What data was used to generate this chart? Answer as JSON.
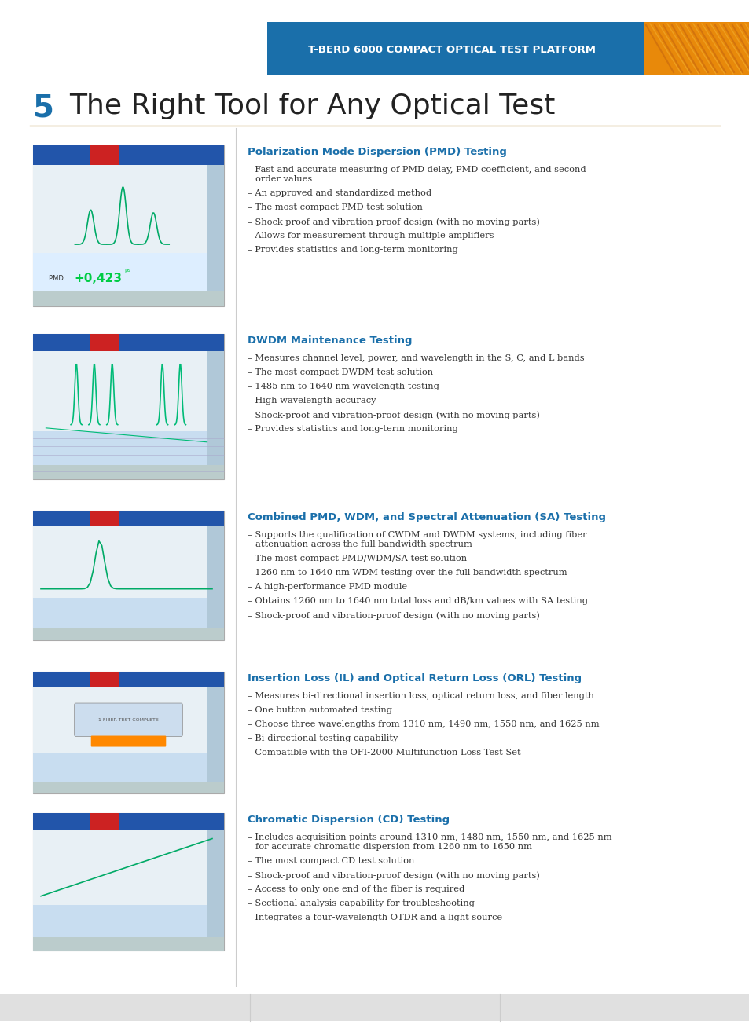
{
  "page_bg": "#ffffff",
  "header_bg": "#1a6faa",
  "header_text": "T-BERD 6000 COMPACT OPTICAL TEST PLATFORM",
  "header_text_color": "#ffffff",
  "page_number": "5",
  "page_number_color": "#1a6faa",
  "title": "The Right Tool for Any Optical Test",
  "title_color": "#222222",
  "divider_color": "#c8a96e",
  "sections": [
    {
      "heading": "Polarization Mode Dispersion (PMD) Testing",
      "heading_color": "#1a6faa",
      "bullets": [
        "– Fast and accurate measuring of PMD delay, PMD coefficient, and second\n   order values",
        "– An approved and standardized method",
        "– The most compact PMD test solution",
        "– Shock-proof and vibration-proof design (with no moving parts)",
        "– Allows for measurement through multiple amplifiers",
        "– Provides statistics and long-term monitoring"
      ]
    },
    {
      "heading": "DWDM Maintenance Testing",
      "heading_color": "#1a6faa",
      "bullets": [
        "– Measures channel level, power, and wavelength in the S, C, and L bands",
        "– The most compact DWDM test solution",
        "– 1485 nm to 1640 nm wavelength testing",
        "– High wavelength accuracy",
        "– Shock-proof and vibration-proof design (with no moving parts)",
        "– Provides statistics and long-term monitoring"
      ]
    },
    {
      "heading": "Combined PMD, WDM, and Spectral Attenuation (SA) Testing",
      "heading_color": "#1a6faa",
      "bullets": [
        "– Supports the qualification of CWDM and DWDM systems, including fiber\n   attenuation across the full bandwidth spectrum",
        "– The most compact PMD/WDM/SA test solution",
        "– 1260 nm to 1640 nm WDM testing over the full bandwidth spectrum",
        "– A high-performance PMD module",
        "– Obtains 1260 nm to 1640 nm total loss and dB/km values with SA testing",
        "– Shock-proof and vibration-proof design (with no moving parts)"
      ]
    },
    {
      "heading": "Insertion Loss (IL) and Optical Return Loss (ORL) Testing",
      "heading_color": "#1a6faa",
      "bullets": [
        "– Measures bi-directional insertion loss, optical return loss, and fiber length",
        "– One button automated testing",
        "– Choose three wavelengths from 1310 nm, 1490 nm, 1550 nm, and 1625 nm",
        "– Bi-directional testing capability",
        "– Compatible with the OFI-2000 Multifunction Loss Test Set"
      ]
    },
    {
      "heading": "Chromatic Dispersion (CD) Testing",
      "heading_color": "#1a6faa",
      "bullets": [
        "– Includes acquisition points around 1310 nm, 1480 nm, 1550 nm, and 1625 nm\n   for accurate chromatic dispersion from 1260 nm to 1650 nm",
        "– The most compact CD test solution",
        "– Shock-proof and vibration-proof design (with no moving parts)",
        "– Access to only one end of the fiber is required",
        "– Sectional analysis capability for troubleshooting",
        "– Integrates a four-wavelength OTDR and a light source"
      ]
    }
  ],
  "footer_bg": "#e0e0e0",
  "section_tops": [
    175,
    415,
    640,
    845,
    1025
  ],
  "section_img_heights": [
    215,
    195,
    175,
    165,
    185
  ]
}
